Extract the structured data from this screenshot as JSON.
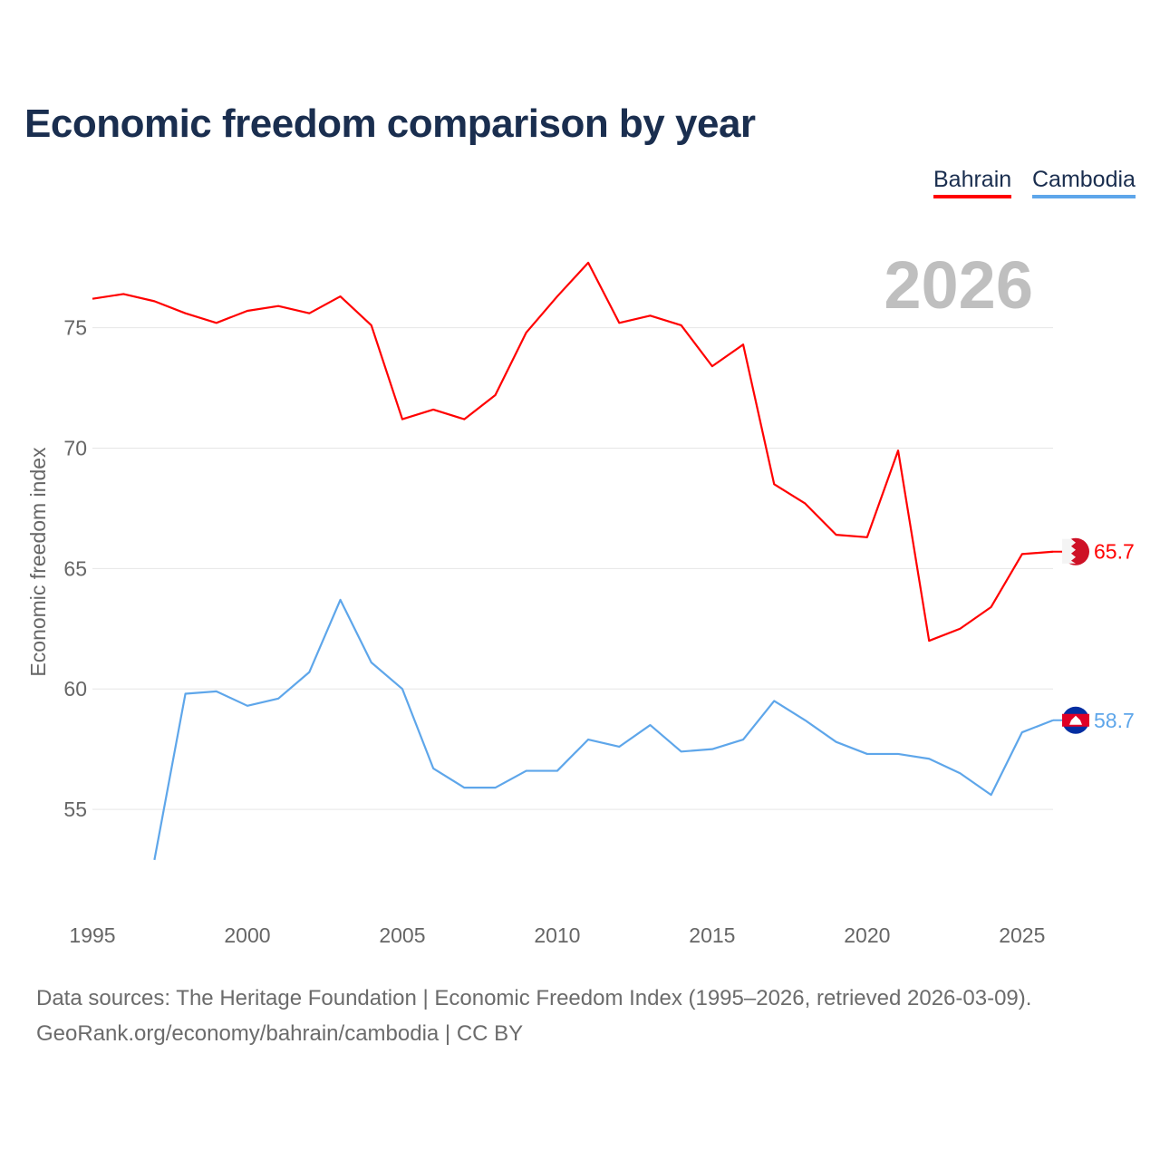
{
  "title": "Economic freedom comparison by year",
  "footer": {
    "line1": "Data sources: The Heritage Foundation | Economic Freedom Index (1995–2026, retrieved 2026-03-09).",
    "line2": "GeoRank.org/economy/bahrain/cambodia | CC BY"
  },
  "chart_data": {
    "type": "line",
    "title": "Economic freedom comparison by year",
    "xlabel": "",
    "ylabel": "Economic freedom index",
    "year_watermark": "2026",
    "xlim": [
      1995,
      2026
    ],
    "ylim": [
      50.6,
      79.2
    ],
    "xticks": [
      1995,
      2000,
      2005,
      2010,
      2015,
      2020,
      2025
    ],
    "yticks": [
      55,
      60,
      65,
      70,
      75
    ],
    "grid": true,
    "legend_position": "top-right",
    "series": [
      {
        "name": "Bahrain",
        "color": "#ff0000",
        "end_label": "65.7",
        "flag": "bahrain-flag",
        "x": [
          1995,
          1996,
          1997,
          1998,
          1999,
          2000,
          2001,
          2002,
          2003,
          2004,
          2005,
          2006,
          2007,
          2008,
          2009,
          2010,
          2011,
          2012,
          2013,
          2014,
          2015,
          2016,
          2017,
          2018,
          2019,
          2020,
          2021,
          2022,
          2023,
          2024,
          2025,
          2026
        ],
        "values": [
          76.2,
          76.4,
          76.1,
          75.6,
          75.2,
          75.7,
          75.9,
          75.6,
          76.3,
          75.1,
          71.2,
          71.6,
          71.2,
          72.2,
          74.8,
          76.3,
          77.7,
          75.2,
          75.5,
          75.1,
          73.4,
          74.3,
          68.5,
          67.7,
          66.4,
          66.3,
          69.9,
          62.0,
          62.5,
          63.4,
          65.6,
          65.7
        ]
      },
      {
        "name": "Cambodia",
        "color": "#5ea6ea",
        "end_label": "58.7",
        "flag": "cambodia-flag",
        "x": [
          1997,
          1998,
          1999,
          2000,
          2001,
          2002,
          2003,
          2004,
          2005,
          2006,
          2007,
          2008,
          2009,
          2010,
          2011,
          2012,
          2013,
          2014,
          2015,
          2016,
          2017,
          2018,
          2019,
          2020,
          2021,
          2022,
          2023,
          2024,
          2025,
          2026
        ],
        "values": [
          52.9,
          59.8,
          59.9,
          59.3,
          59.6,
          60.7,
          63.7,
          61.1,
          60.0,
          56.7,
          55.9,
          55.9,
          56.6,
          56.6,
          57.9,
          57.6,
          58.5,
          57.4,
          57.5,
          57.9,
          59.5,
          58.7,
          57.8,
          57.3,
          57.3,
          57.1,
          56.5,
          55.6,
          58.2,
          58.7
        ]
      }
    ]
  }
}
